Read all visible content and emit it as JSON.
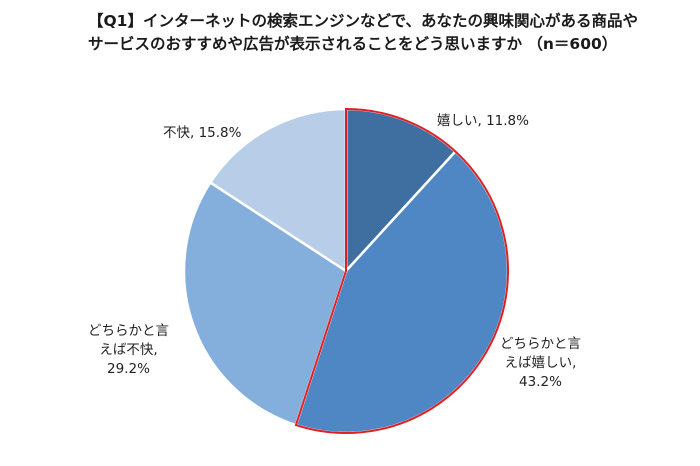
{
  "chart_data": {
    "type": "pie",
    "title_lines": [
      "【Q1】インターネットの検索エンジンなどで、あなたの興味関心がある商品や",
      "サービスのおすすめや広告が表示されることをどう思いますか （n＝600）"
    ],
    "slices": [
      {
        "label_lines": [
          "嬉しい, 11.8%"
        ],
        "value": 11.8,
        "color": "#3f6fa1",
        "highlight": true
      },
      {
        "label_lines": [
          "どちらかと言",
          "えば嬉しい,",
          "43.2%"
        ],
        "value": 43.2,
        "color": "#4f87c4",
        "highlight": true
      },
      {
        "label_lines": [
          "どちらかと言",
          "えば不快,",
          "29.2%"
        ],
        "value": 29.2,
        "color": "#84aedc",
        "highlight": false
      },
      {
        "label_lines": [
          "不快, 15.8%"
        ],
        "value": 15.8,
        "color": "#b7cde8",
        "highlight": false
      }
    ],
    "highlight_color": "#e02020",
    "legend": "none"
  }
}
